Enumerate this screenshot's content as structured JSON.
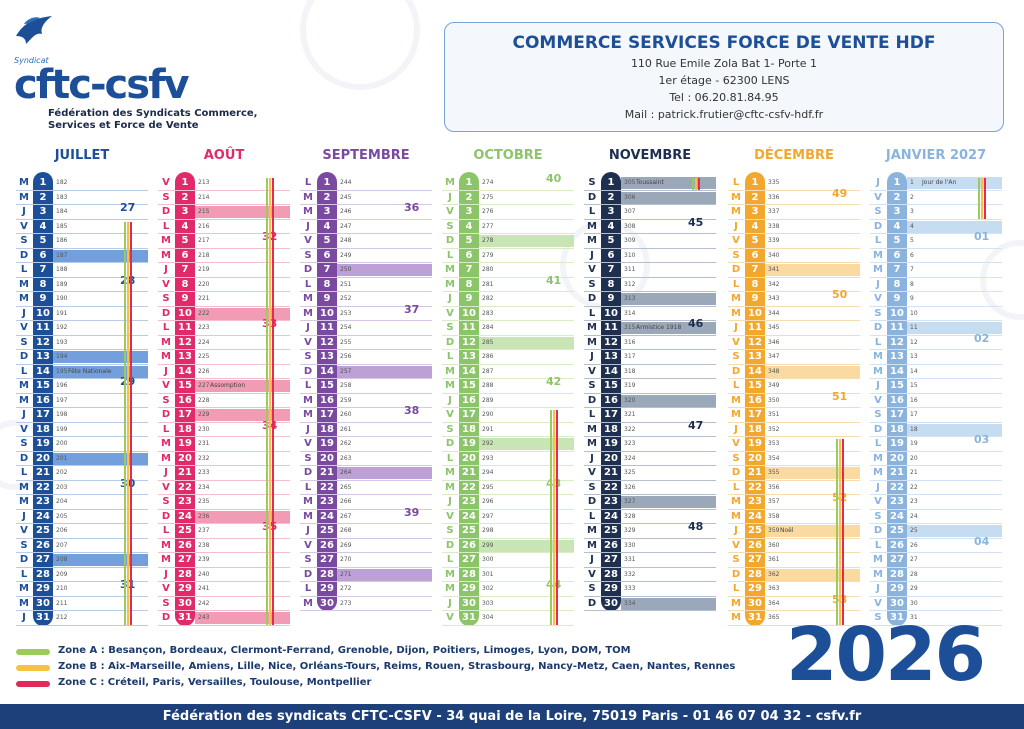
{
  "header": {
    "brand_small": "Syndicat",
    "brand": "cftc-csfv",
    "federation": "Fédération des Syndicats Commerce, Services et Force de Vente",
    "title": "COMMERCE SERVICES FORCE DE VENTE HDF",
    "address1": "110 Rue Emile Zola Bat 1- Porte 1",
    "address2": "1er étage - 62300 LENS",
    "tel": "Tel : 06.20.81.84.95",
    "mail": "Mail : patrick.frutier@cftc-csfv-hdf.fr"
  },
  "year": "2026",
  "footer": "Fédération des syndicats CFTC-CSFV   -   34 quai de la Loire, 75019 Paris   -   01 46 07 04 32   -   csfv.fr",
  "legend": [
    {
      "color": "#9ccb5a",
      "text": "Zone A : Besançon, Bordeaux, Clermont-Ferrand, Grenoble, Dijon, Poitiers, Limoges, Lyon, DOM, TOM"
    },
    {
      "color": "#f6c244",
      "text": "Zone B : Aix-Marseille, Amiens, Lille, Nice, Orléans-Tours, Reims, Rouen, Strasbourg, Nancy-Metz, Caen, Nantes, Rennes"
    },
    {
      "color": "#e02a5a",
      "text": "Zone C : Créteil, Paris, Versailles, Toulouse, Montpellier"
    }
  ],
  "colors": {
    "green": "#9ccb5a",
    "yellow": "#f6c244",
    "red": "#e02a5a"
  },
  "months": [
    {
      "name": "JUILLET",
      "color": "#1d4f98",
      "band": "#5b8fd6",
      "line": "#b9cbe6",
      "days": 31,
      "startDow": 2,
      "startDoy": 182,
      "weeks": [
        {
          "n": "27",
          "day": 3
        },
        {
          "n": "28",
          "day": 8
        },
        {
          "n": "29",
          "day": 15
        },
        {
          "n": "30",
          "day": 22
        },
        {
          "n": "31",
          "day": 29
        }
      ],
      "events": [
        {
          "day": 14,
          "label": "Fête Nationale"
        }
      ],
      "zones": [
        {
          "start": 4,
          "end": 31,
          "z": [
            "green",
            "yellow",
            "red"
          ]
        }
      ]
    },
    {
      "name": "AOÛT",
      "color": "#e02a6a",
      "band": "#ef8aa8",
      "line": "#f3bfcf",
      "days": 31,
      "startDow": 5,
      "startDoy": 213,
      "weeks": [
        {
          "n": "32",
          "day": 5
        },
        {
          "n": "33",
          "day": 11
        },
        {
          "n": "34",
          "day": 18
        },
        {
          "n": "35",
          "day": 25
        }
      ],
      "events": [
        {
          "day": 15,
          "label": "Assomption"
        }
      ],
      "zones": [
        {
          "start": 1,
          "end": 31,
          "z": [
            "green",
            "yellow",
            "red"
          ]
        }
      ]
    },
    {
      "name": "SEPTEMBRE",
      "color": "#7a4aa0",
      "band": "#b08fcf",
      "line": "#d7c7e6",
      "days": 30,
      "startDow": 1,
      "startDoy": 244,
      "weeks": [
        {
          "n": "36",
          "day": 3
        },
        {
          "n": "37",
          "day": 10
        },
        {
          "n": "38",
          "day": 17
        },
        {
          "n": "39",
          "day": 24
        }
      ],
      "events": [],
      "zones": []
    },
    {
      "name": "OCTOBRE",
      "color": "#8cc46a",
      "band": "#bfe0a8",
      "line": "#d8ecc8",
      "days": 31,
      "startDow": 3,
      "startDoy": 274,
      "weeks": [
        {
          "n": "40",
          "day": 1
        },
        {
          "n": "41",
          "day": 8
        },
        {
          "n": "42",
          "day": 15
        },
        {
          "n": "43",
          "day": 22
        },
        {
          "n": "44",
          "day": 29
        }
      ],
      "events": [],
      "zones": [
        {
          "start": 17,
          "end": 31,
          "z": [
            "green",
            "yellow",
            "red"
          ]
        }
      ]
    },
    {
      "name": "NOVEMBRE",
      "color": "#1e2f4f",
      "band": "#8a99ad",
      "line": "#b6c0cd",
      "days": 30,
      "startDow": 6,
      "startDoy": 305,
      "weeks": [
        {
          "n": "45",
          "day": 4
        },
        {
          "n": "46",
          "day": 11
        },
        {
          "n": "47",
          "day": 18
        },
        {
          "n": "48",
          "day": 25
        }
      ],
      "events": [
        {
          "day": 1,
          "label": "Toussaint"
        },
        {
          "day": 11,
          "label": "Armistice 1918"
        }
      ],
      "zones": [
        {
          "start": 1,
          "end": 1,
          "z": [
            "green",
            "yellow",
            "red"
          ]
        }
      ]
    },
    {
      "name": "DÉCEMBRE",
      "color": "#f2a72f",
      "band": "#f9d490",
      "line": "#f6dcae",
      "days": 31,
      "startDow": 1,
      "startDoy": 335,
      "weeks": [
        {
          "n": "49",
          "day": 2
        },
        {
          "n": "50",
          "day": 9
        },
        {
          "n": "51",
          "day": 16
        },
        {
          "n": "52",
          "day": 23
        },
        {
          "n": "53",
          "day": 30
        }
      ],
      "events": [
        {
          "day": 25,
          "label": "Noël"
        }
      ],
      "zones": [
        {
          "start": 19,
          "end": 31,
          "z": [
            "green",
            "yellow",
            "red"
          ]
        }
      ]
    },
    {
      "name": "JANVIER 2027",
      "color": "#8ab4dd",
      "band": "#bcd6ef",
      "line": "#d3e3f3",
      "days": 31,
      "startDow": 4,
      "startDoy": 1,
      "weeks": [
        {
          "n": "01",
          "day": 5
        },
        {
          "n": "02",
          "day": 12
        },
        {
          "n": "03",
          "day": 19
        },
        {
          "n": "04",
          "day": 26
        }
      ],
      "events": [
        {
          "day": 1,
          "label": "Jour de l'An"
        }
      ],
      "zones": [
        {
          "start": 1,
          "end": 3,
          "z": [
            "green",
            "yellow",
            "red"
          ]
        }
      ]
    }
  ],
  "dayLetters": [
    "D",
    "L",
    "M",
    "M",
    "J",
    "V",
    "S"
  ]
}
